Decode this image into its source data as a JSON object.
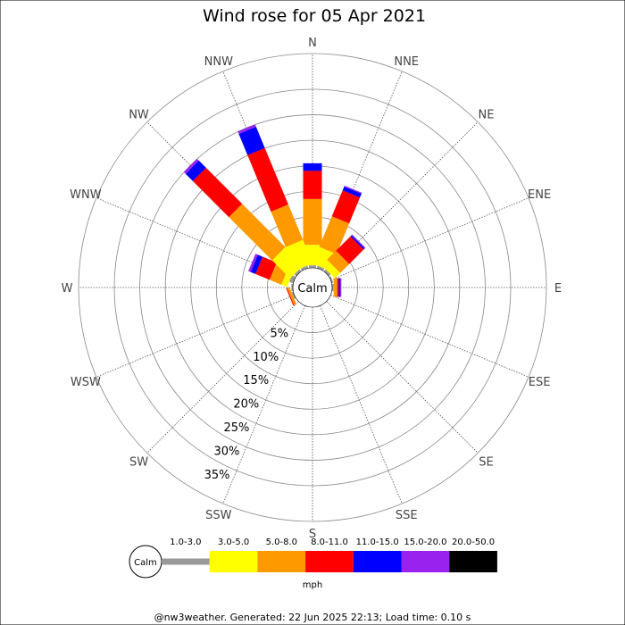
{
  "chart_data": {
    "type": "windrose",
    "title": "Wind rose for 05 Apr 2021",
    "directions": [
      "N",
      "NNE",
      "NE",
      "ENE",
      "E",
      "ESE",
      "SE",
      "SSE",
      "S",
      "SSW",
      "SW",
      "WSW",
      "W",
      "WNW",
      "NW",
      "NNW"
    ],
    "ring_labels": [
      "5%",
      "10%",
      "15%",
      "20%",
      "25%",
      "30%",
      "35%"
    ],
    "ring_values": [
      5,
      10,
      15,
      20,
      25,
      30,
      35
    ],
    "rmax": 42,
    "calm_label": "Calm",
    "speed_unit": "mph",
    "speed_bins": [
      {
        "label": "1.0-3.0",
        "color": "#999999"
      },
      {
        "label": "3.0-5.0",
        "color": "#ffff00"
      },
      {
        "label": "5.0-8.0",
        "color": "#ff9900"
      },
      {
        "label": "8.0-11.0",
        "color": "#ff0000"
      },
      {
        "label": "11.0-15.0",
        "color": "#0000ff"
      },
      {
        "label": "15.0-20.0",
        "color": "#9922ee"
      },
      {
        "label": "20.0-50.0",
        "color": "#000000"
      }
    ],
    "cumulative_percent": {
      "N": [
        0.5,
        4.5,
        13.5,
        19.0,
        20.5,
        20.5,
        20.5
      ],
      "NNE": [
        0.5,
        4.0,
        10.5,
        16.0,
        16.8,
        17.0,
        17.0
      ],
      "NE": [
        0.5,
        2.0,
        4.5,
        8.5,
        8.8,
        9.0,
        9.0
      ],
      "ENE": [
        0.3,
        0.3,
        0.3,
        0.3,
        0.3,
        0.3,
        0.3
      ],
      "E": [
        0.3,
        0.3,
        1.0,
        1.3,
        1.6,
        1.8,
        1.8
      ],
      "ESE": [
        0,
        0,
        0,
        0,
        0,
        0,
        0
      ],
      "SE": [
        0,
        0,
        0,
        0,
        0,
        0,
        0
      ],
      "SSE": [
        0,
        0,
        0,
        0,
        0,
        0,
        0
      ],
      "S": [
        0,
        0,
        0,
        0,
        0,
        0,
        0
      ],
      "SSW": [
        0,
        0,
        0,
        0,
        0,
        0,
        0
      ],
      "SW": [
        0,
        0,
        0,
        0,
        0,
        0,
        0
      ],
      "WSW": [
        0.3,
        0.3,
        0.8,
        1.0,
        1.0,
        1.0,
        1.0
      ],
      "W": [
        0.3,
        0.3,
        0.3,
        0.3,
        0.3,
        0.3,
        0.3
      ],
      "WNW": [
        0.8,
        2.0,
        4.5,
        7.5,
        8.5,
        9.0,
        9.0
      ],
      "NW": [
        0.5,
        5.5,
        17.5,
        27.5,
        29.5,
        30.0,
        30.0
      ],
      "NNW": [
        0.5,
        5.5,
        13.0,
        25.0,
        29.5,
        30.0,
        30.0
      ]
    }
  },
  "footer": "@nw3weather. Generated: 22 Jun 2025 22:13; Load time: 0.10 s"
}
